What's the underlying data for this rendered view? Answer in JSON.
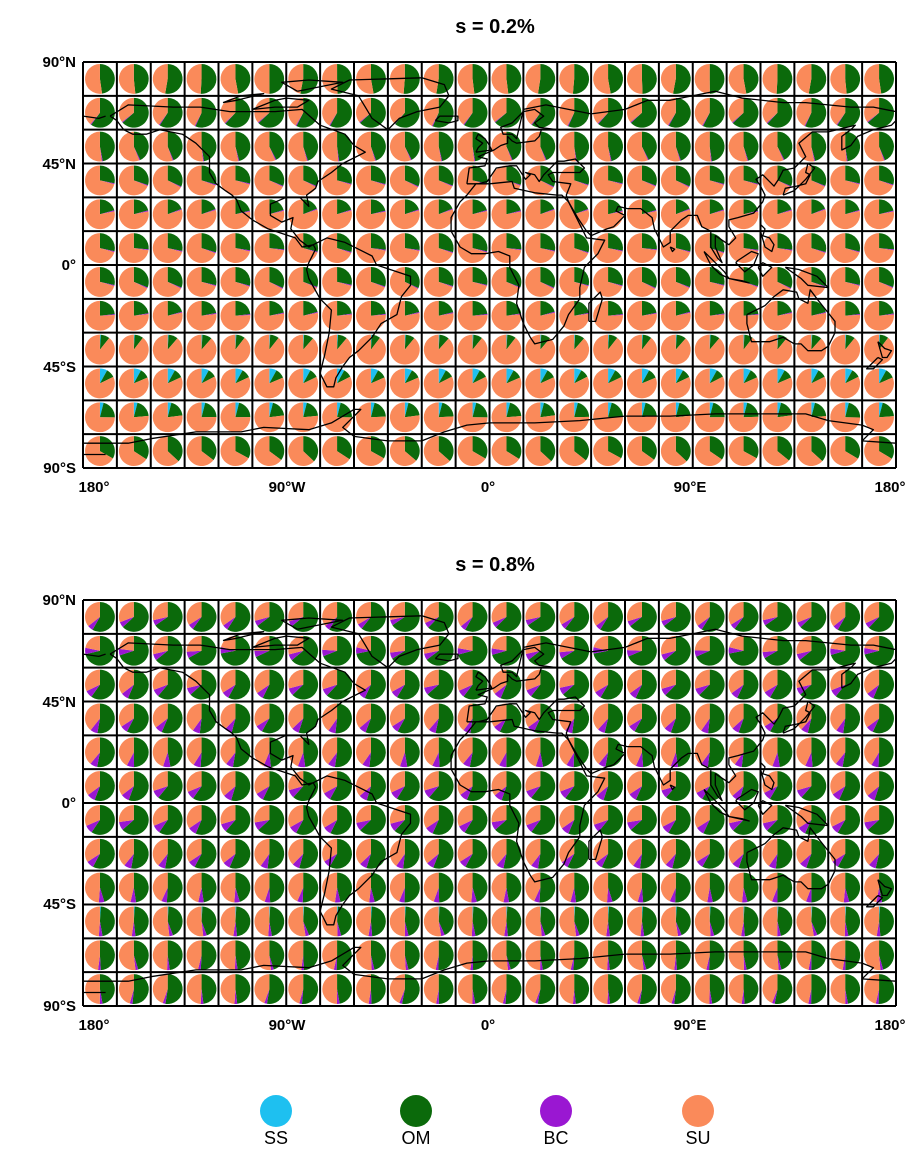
{
  "chart_data": [
    {
      "type": "pie-grid-map",
      "title": "s = 0.2%",
      "y_ticks": [
        "90°N",
        "45°N",
        "0°",
        "45°S",
        "90°S"
      ],
      "x_ticks": [
        "180°",
        "90°W",
        "0°",
        "90°E",
        "180°"
      ],
      "legend_position": "bottom",
      "series_names": [
        "SS",
        "OM",
        "BC",
        "SU"
      ],
      "row_latitude_bands": [
        "90N-75N",
        "75N-60N",
        "60N-45N",
        "45N-30N",
        "30N-15N",
        "15N-0",
        "0-15S",
        "15S-30S",
        "30S-45S",
        "45S-60S",
        "60S-75S",
        "75S-90S"
      ],
      "typical_row_fractions_percent": [
        {
          "SS": 0,
          "OM": 50,
          "BC": 0,
          "SU": 50
        },
        {
          "SS": 0,
          "OM": 60,
          "BC": 1,
          "SU": 39
        },
        {
          "SS": 0,
          "OM": 45,
          "BC": 1,
          "SU": 54
        },
        {
          "SS": 0,
          "OM": 30,
          "BC": 1,
          "SU": 69
        },
        {
          "SS": 0,
          "OM": 20,
          "BC": 1,
          "SU": 79
        },
        {
          "SS": 0,
          "OM": 28,
          "BC": 1,
          "SU": 71
        },
        {
          "SS": 0,
          "OM": 30,
          "BC": 1,
          "SU": 69
        },
        {
          "SS": 0,
          "OM": 22,
          "BC": 1,
          "SU": 77
        },
        {
          "SS": 1,
          "OM": 10,
          "BC": 0,
          "SU": 89
        },
        {
          "SS": 8,
          "OM": 10,
          "BC": 0,
          "SU": 82
        },
        {
          "SS": 4,
          "OM": 20,
          "BC": 0,
          "SU": 76
        },
        {
          "SS": 0,
          "OM": 35,
          "BC": 0,
          "SU": 65
        }
      ]
    },
    {
      "type": "pie-grid-map",
      "title": "s = 0.8%",
      "y_ticks": [
        "90°N",
        "45°N",
        "0°",
        "45°S",
        "90°S"
      ],
      "x_ticks": [
        "180°",
        "90°W",
        "0°",
        "90°E",
        "180°"
      ],
      "legend_position": "bottom",
      "series_names": [
        "SS",
        "OM",
        "BC",
        "SU"
      ],
      "row_latitude_bands": [
        "90N-75N",
        "75N-60N",
        "60N-45N",
        "45N-30N",
        "30N-15N",
        "15N-0",
        "0-15S",
        "15S-30S",
        "30S-45S",
        "45S-60S",
        "60S-75S",
        "75S-90S"
      ],
      "typical_row_fractions_percent": [
        {
          "SS": 0,
          "OM": 62,
          "BC": 6,
          "SU": 32
        },
        {
          "SS": 0,
          "OM": 68,
          "BC": 7,
          "SU": 25
        },
        {
          "SS": 0,
          "OM": 60,
          "BC": 8,
          "SU": 32
        },
        {
          "SS": 0,
          "OM": 55,
          "BC": 8,
          "SU": 37
        },
        {
          "SS": 0,
          "OM": 50,
          "BC": 8,
          "SU": 42
        },
        {
          "SS": 0,
          "OM": 58,
          "BC": 9,
          "SU": 33
        },
        {
          "SS": 0,
          "OM": 60,
          "BC": 9,
          "SU": 31
        },
        {
          "SS": 0,
          "OM": 55,
          "BC": 8,
          "SU": 37
        },
        {
          "SS": 0,
          "OM": 48,
          "BC": 6,
          "SU": 46
        },
        {
          "SS": 1,
          "OM": 45,
          "BC": 4,
          "SU": 50
        },
        {
          "SS": 0,
          "OM": 48,
          "BC": 3,
          "SU": 49
        },
        {
          "SS": 0,
          "OM": 50,
          "BC": 3,
          "SU": 47
        }
      ]
    }
  ],
  "legend": [
    {
      "label": "SS",
      "color": "#1ec0f0"
    },
    {
      "label": "OM",
      "color": "#0b6a0b"
    },
    {
      "label": "BC",
      "color": "#9a17d2"
    },
    {
      "label": "SU",
      "color": "#fa8a5a"
    }
  ],
  "colors": {
    "SS": "#1ec0f0",
    "OM": "#0b6a0b",
    "BC": "#9a17d2",
    "SU": "#fa8a5a",
    "grid": "#000000",
    "coast": "#000000"
  },
  "grid": {
    "columns": 24,
    "rows": 12
  }
}
